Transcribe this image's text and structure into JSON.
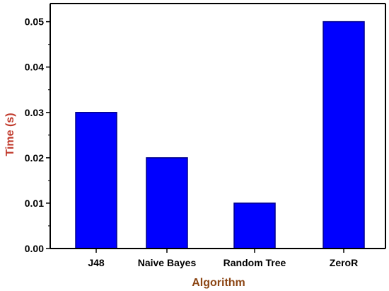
{
  "chart_data": {
    "type": "bar",
    "title": "",
    "xlabel": "Algorithm",
    "ylabel": "Time (s)",
    "categories": [
      "J48",
      "Naive Bayes",
      "Random Tree",
      "ZeroR"
    ],
    "values": [
      0.03,
      0.02,
      0.01,
      0.05
    ],
    "ylim": [
      0,
      0.054
    ],
    "yticks": [
      "0.00",
      "0.01",
      "0.02",
      "0.03",
      "0.04",
      "0.05"
    ],
    "grid": false,
    "colors": {
      "bar": "#0000ff",
      "bar_edge": "#00008b",
      "xlabel": "#8b4513",
      "ylabel": "#c0392b",
      "axis": "#000000"
    }
  }
}
